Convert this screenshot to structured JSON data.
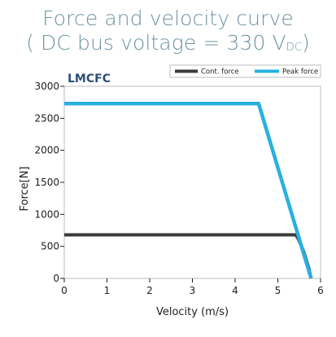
{
  "title": {
    "line1": "Force and velocity curve",
    "line2_prefix": "( DC bus voltage = 330 V",
    "line2_sub": "DC",
    "line2_suffix": ")"
  },
  "chart_data": {
    "type": "line",
    "model_label": "LMCFC",
    "xlabel": "Velocity (m/s)",
    "ylabel": "Force[N]",
    "xlim": [
      0,
      6
    ],
    "ylim": [
      0,
      3000
    ],
    "x_ticks": [
      "0",
      "1",
      "2",
      "3",
      "4",
      "5",
      "6"
    ],
    "y_ticks": [
      "0",
      "500",
      "1000",
      "1500",
      "2000",
      "2500",
      "3000"
    ],
    "grid": false,
    "legend_position": "top-right",
    "series": [
      {
        "name": "Cont. force",
        "color": "#3a3a3a",
        "points": [
          [
            0,
            680
          ],
          [
            5.42,
            680
          ],
          [
            5.48,
            615
          ],
          [
            5.6,
            430
          ],
          [
            5.72,
            170
          ],
          [
            5.78,
            0
          ]
        ]
      },
      {
        "name": "Peak force",
        "color": "#28b0e0",
        "points": [
          [
            0,
            2730
          ],
          [
            4.55,
            2730
          ],
          [
            5.78,
            0
          ]
        ]
      }
    ]
  }
}
